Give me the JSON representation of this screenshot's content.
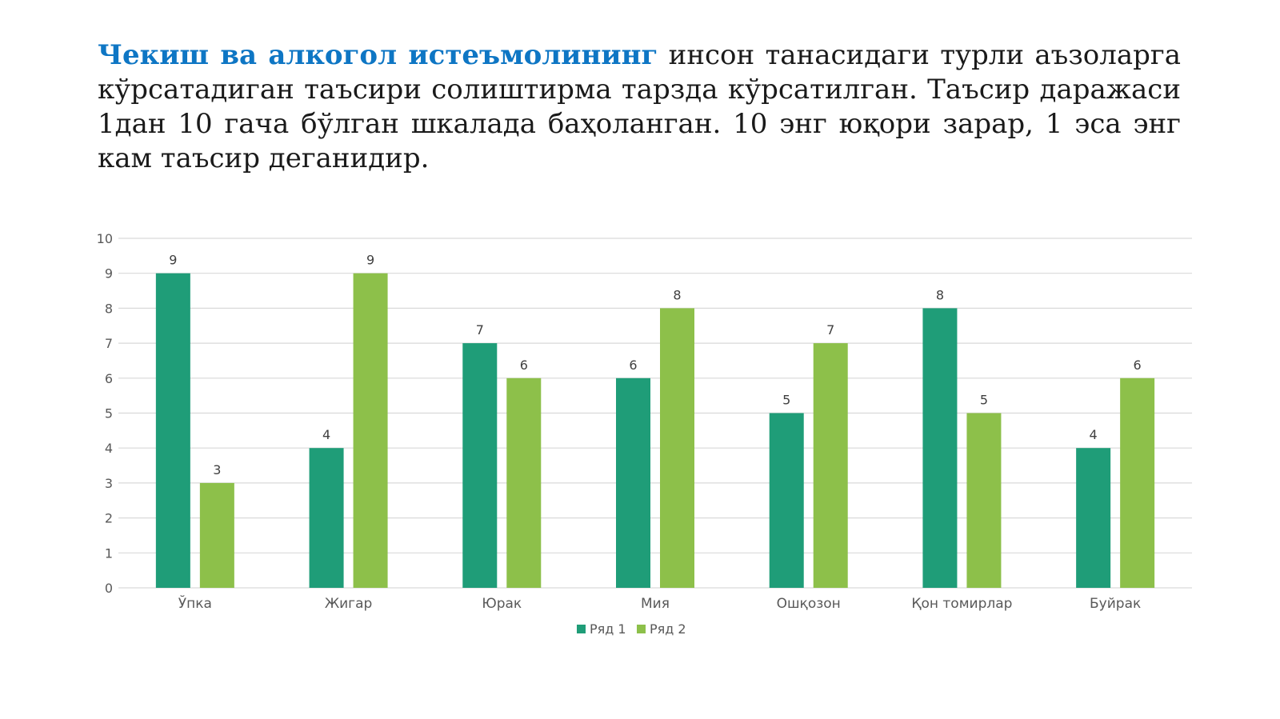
{
  "intro": {
    "highlight": "Чекиш ва алкогол истеъмолининг",
    "rest": " инсон танасидаги турли аъзоларга кўрсатадиган таъсири солиштирма тарзда кўрсатилган. Таъсир даражаси 1дан 10 гача бўлган шкалада баҳоланган. 10 энг юқори зарар, 1 эса энг кам таъсир деганидир."
  },
  "colors": {
    "series1": "#1f9d78",
    "series2": "#8dc04a",
    "highlight_text": "#0e76c4",
    "grid": "#d9d9d9",
    "axis_text": "#595959"
  },
  "chart_data": {
    "type": "bar",
    "categories": [
      "Ўпка",
      "Жигар",
      "Юрак",
      "Мия",
      "Ошқозон",
      "Қон томирлар",
      "Буйрак"
    ],
    "series": [
      {
        "name": "Ряд 1",
        "values": [
          9,
          4,
          7,
          6,
          5,
          8,
          4
        ]
      },
      {
        "name": "Ряд 2",
        "values": [
          3,
          9,
          6,
          8,
          7,
          5,
          6
        ]
      }
    ],
    "ylim": [
      0,
      10
    ],
    "yticks": [
      0,
      1,
      2,
      3,
      4,
      5,
      6,
      7,
      8,
      9,
      10
    ],
    "grid": true,
    "data_labels": true,
    "legend_position": "bottom"
  }
}
